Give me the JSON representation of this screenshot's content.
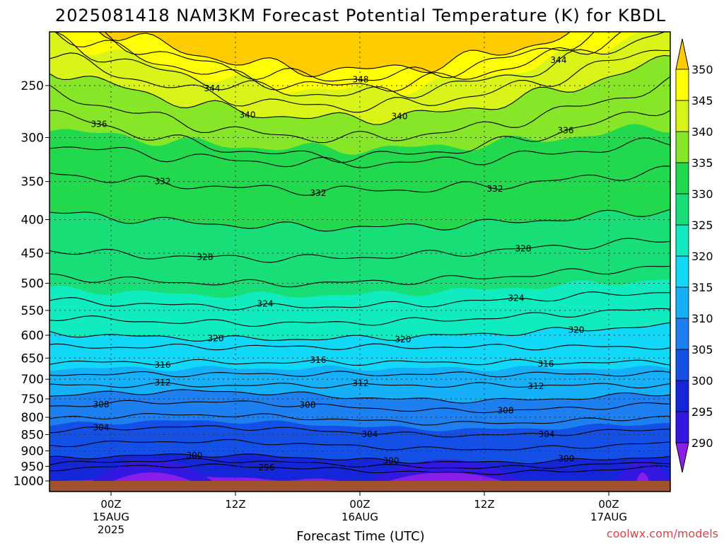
{
  "chart_data": {
    "type": "heatmap",
    "title": "2025081418 NAM3KM Forecast Potential Temperature (K) for KBDL",
    "xlabel": "Forecast Time (UTC)",
    "ylabel": "",
    "credit": "coolwx.com/models",
    "y_scale": "log",
    "y_inverted": true,
    "y_range_hPa": [
      1000,
      200
    ],
    "pressure_ticks": [
      "250",
      "300",
      "350",
      "400",
      "450",
      "500",
      "550",
      "600",
      "650",
      "700",
      "750",
      "800",
      "850",
      "900",
      "950",
      "1000"
    ],
    "x_ticks": [
      {
        "time": "00Z",
        "date": "15AUG",
        "year": "2025"
      },
      {
        "time": "12Z",
        "date": "",
        "year": ""
      },
      {
        "time": "00Z",
        "date": "16AUG",
        "year": ""
      },
      {
        "time": "12Z",
        "date": "",
        "year": ""
      },
      {
        "time": "00Z",
        "date": "17AUG",
        "year": ""
      }
    ],
    "forecast_hours_range": [
      0,
      60
    ],
    "colorbar": {
      "levels": [
        290,
        295,
        300,
        305,
        310,
        315,
        320,
        325,
        330,
        335,
        340,
        345,
        350
      ],
      "labels": [
        "290",
        "295",
        "300",
        "305",
        "310",
        "315",
        "320",
        "325",
        "330",
        "335",
        "340",
        "345",
        "350"
      ],
      "colors": [
        "#8a1ee6",
        "#3218e0",
        "#1426d8",
        "#1450e6",
        "#1e80f0",
        "#16b0f8",
        "#10d8f6",
        "#10ecc0",
        "#18de78",
        "#22d84c",
        "#88e628",
        "#d8f418",
        "#ffff00",
        "#ffcc00"
      ]
    },
    "ground_color": "#a0522d",
    "contour_labels": [
      "344",
      "348",
      "344",
      "340",
      "336",
      "340",
      "332",
      "336",
      "332",
      "332",
      "328",
      "328",
      "324",
      "324",
      "320",
      "320",
      "320",
      "316",
      "316",
      "316",
      "312",
      "312",
      "312",
      "308",
      "308",
      "308",
      "304",
      "304",
      "304",
      "300",
      "300",
      "300",
      "296"
    ]
  }
}
